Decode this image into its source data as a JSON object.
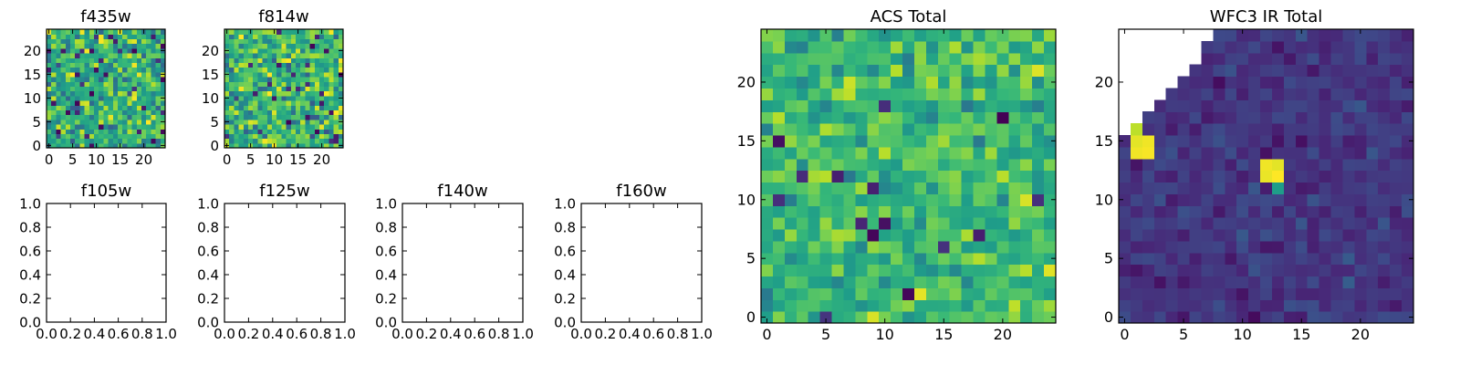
{
  "figure": {
    "background": "#ffffff",
    "colormap": "viridis"
  },
  "chart_data": [
    {
      "type": "heatmap",
      "title": "f435w",
      "shape": [
        25,
        25
      ],
      "xlim": [
        -0.5,
        24.5
      ],
      "ylim": [
        -0.5,
        24.5
      ],
      "xticks": [
        0,
        5,
        10,
        15,
        20
      ],
      "yticks": [
        0,
        5,
        10,
        15,
        20
      ],
      "origin": "lower",
      "vrange": [
        0,
        1
      ],
      "seed": 11,
      "mean": 0.62,
      "spread": 0.22,
      "dark_fraction": 0.05
    },
    {
      "type": "heatmap",
      "title": "f814w",
      "shape": [
        25,
        25
      ],
      "xlim": [
        -0.5,
        24.5
      ],
      "ylim": [
        -0.5,
        24.5
      ],
      "xticks": [
        0,
        5,
        10,
        15,
        20
      ],
      "yticks": [
        0,
        5,
        10,
        15,
        20
      ],
      "origin": "lower",
      "vrange": [
        0,
        1
      ],
      "seed": 29,
      "mean": 0.66,
      "spread": 0.22,
      "dark_fraction": 0.05
    },
    {
      "type": "empty",
      "title": "f105w",
      "xlim": [
        0,
        1
      ],
      "ylim": [
        0,
        1
      ],
      "xticks": [
        "0.0",
        "0.2",
        "0.4",
        "0.6",
        "0.8",
        "1.0"
      ],
      "yticks": [
        "0.0",
        "0.2",
        "0.4",
        "0.6",
        "0.8",
        "1.0"
      ]
    },
    {
      "type": "empty",
      "title": "f125w",
      "xlim": [
        0,
        1
      ],
      "ylim": [
        0,
        1
      ],
      "xticks": [
        "0.0",
        "0.2",
        "0.4",
        "0.6",
        "0.8",
        "1.0"
      ],
      "yticks": [
        "0.0",
        "0.2",
        "0.4",
        "0.6",
        "0.8",
        "1.0"
      ]
    },
    {
      "type": "empty",
      "title": "f140w",
      "xlim": [
        0,
        1
      ],
      "ylim": [
        0,
        1
      ],
      "xticks": [
        "0.0",
        "0.2",
        "0.4",
        "0.6",
        "0.8",
        "1.0"
      ],
      "yticks": [
        "0.0",
        "0.2",
        "0.4",
        "0.6",
        "0.8",
        "1.0"
      ]
    },
    {
      "type": "empty",
      "title": "f160w",
      "xlim": [
        0,
        1
      ],
      "ylim": [
        0,
        1
      ],
      "xticks": [
        "0.0",
        "0.2",
        "0.4",
        "0.6",
        "0.8",
        "1.0"
      ],
      "yticks": [
        "0.0",
        "0.2",
        "0.4",
        "0.6",
        "0.8",
        "1.0"
      ]
    },
    {
      "type": "heatmap",
      "title": "ACS Total",
      "shape": [
        25,
        25
      ],
      "xlim": [
        -0.5,
        24.5
      ],
      "ylim": [
        -0.5,
        24.5
      ],
      "xticks": [
        0,
        5,
        10,
        15,
        20
      ],
      "yticks": [
        0,
        5,
        10,
        15,
        20
      ],
      "origin": "lower",
      "vrange": [
        0,
        1
      ],
      "seed": 47,
      "mean": 0.68,
      "spread": 0.16,
      "dark_fraction": 0.03
    },
    {
      "type": "heatmap",
      "title": "WFC3 IR Total",
      "shape": [
        25,
        25
      ],
      "xlim": [
        -0.5,
        24.5
      ],
      "ylim": [
        -0.5,
        24.5
      ],
      "xticks": [
        0,
        5,
        10,
        15,
        20
      ],
      "yticks": [
        0,
        5,
        10,
        15,
        20
      ],
      "origin": "lower",
      "vrange": [
        0,
        1
      ],
      "seed": 83,
      "mean": 0.16,
      "spread": 0.07,
      "dark_fraction": 0.0,
      "masked_blank": "upper-left-triangle",
      "bright_pixels": [
        [
          1,
          14,
          0.98
        ],
        [
          2,
          14,
          0.99
        ],
        [
          2,
          15,
          0.98
        ],
        [
          1,
          15,
          0.96
        ],
        [
          1,
          16,
          0.9
        ],
        [
          12,
          12,
          0.97
        ],
        [
          13,
          12,
          1.0
        ],
        [
          12,
          13,
          0.98
        ],
        [
          13,
          13,
          0.96
        ],
        [
          13,
          11,
          0.55
        ]
      ]
    }
  ]
}
